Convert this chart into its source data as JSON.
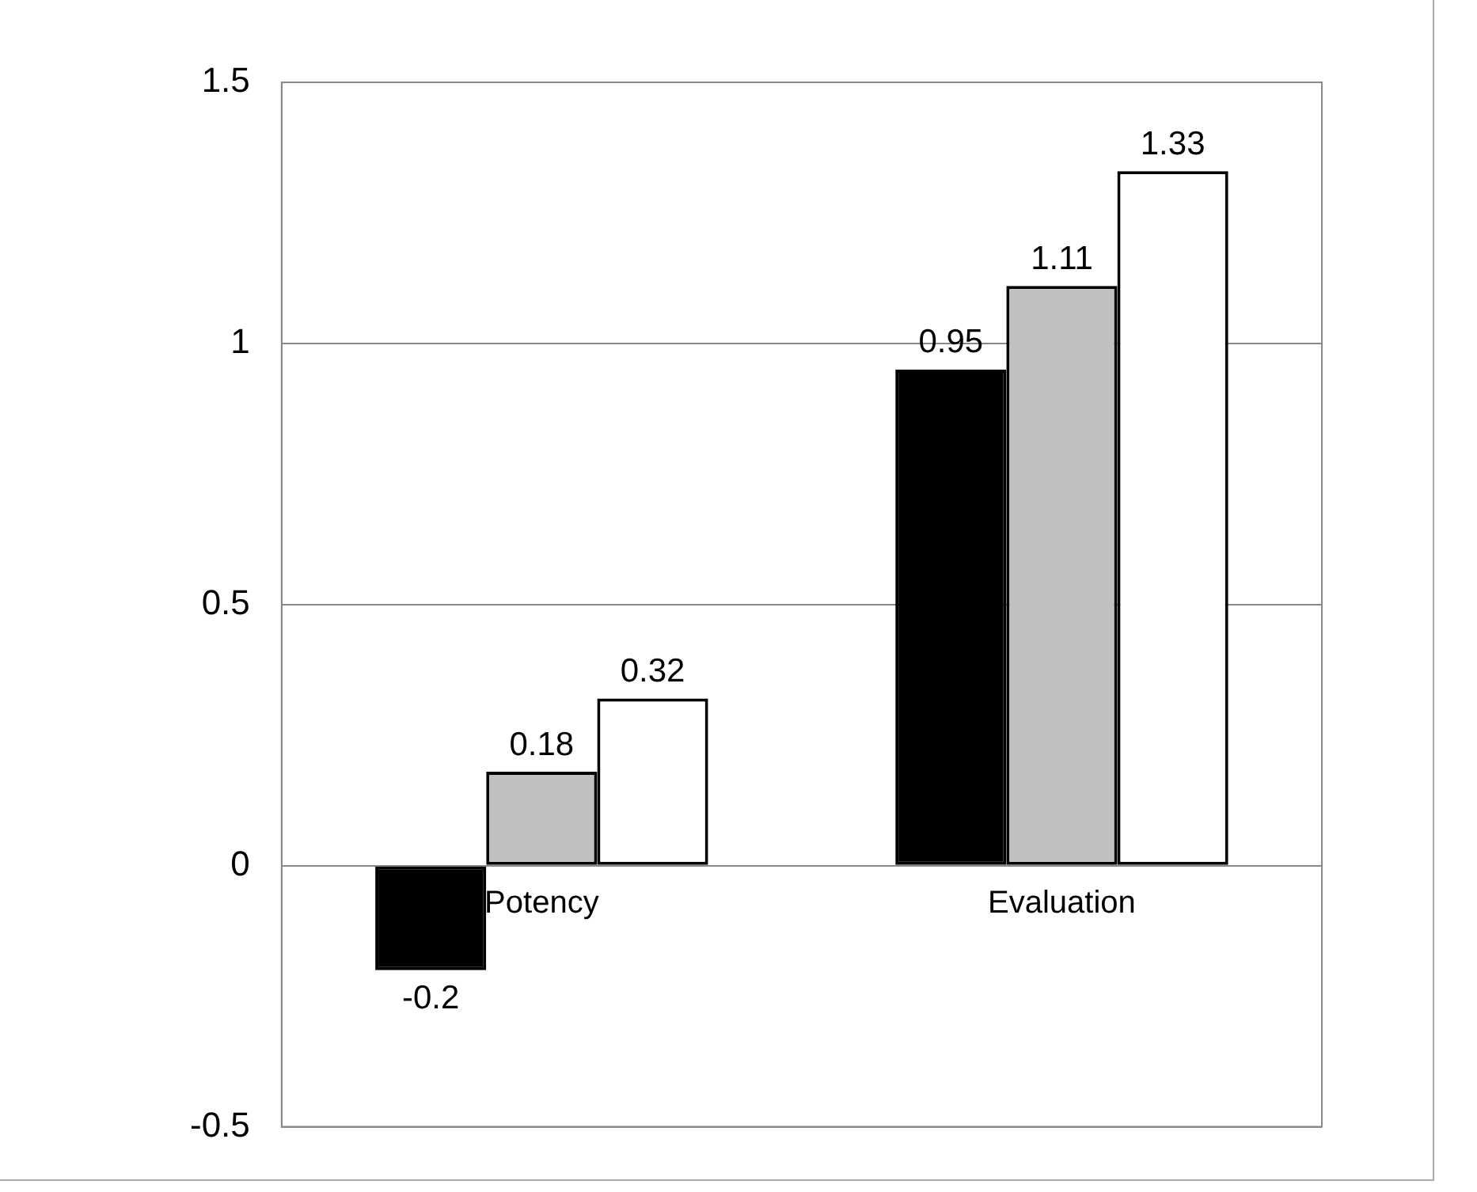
{
  "chart_data": {
    "type": "bar",
    "categories": [
      "Potency",
      "Evaluation"
    ],
    "series": [
      {
        "color": "#000000",
        "values": [
          -0.2,
          0.95
        ]
      },
      {
        "color": "#c0c0c0",
        "values": [
          0.18,
          1.11
        ]
      },
      {
        "color": "#ffffff",
        "values": [
          0.32,
          1.33
        ]
      }
    ],
    "ylim": [
      -0.5,
      1.5
    ],
    "yticks": [
      -0.5,
      0,
      0.5,
      1,
      1.5
    ],
    "grid": "y",
    "legend": false,
    "data_labels": true
  }
}
